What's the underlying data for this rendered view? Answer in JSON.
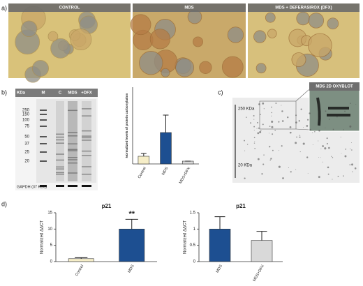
{
  "panel_labels": [
    "a)",
    "b)",
    "c)",
    "d)"
  ],
  "micrographs": [
    "CONTROL",
    "MDS",
    "MDS + DEFERASIROX  (DFX)"
  ],
  "blot": {
    "header": [
      "KDa",
      "M",
      "C",
      "MDS",
      "+DFX"
    ],
    "markers": [
      "250",
      "150",
      "100",
      "75",
      "50",
      "37",
      "25",
      "20"
    ],
    "loading": "GAPDH (37 KDa)"
  },
  "gel2d": {
    "inset_title": "MDS 2D OXYBLOT",
    "markers": [
      "250 KDa",
      "20 KDa"
    ]
  },
  "chart_data": [
    {
      "type": "bar",
      "y_label": "Normalized levels of protein carbonylation",
      "categories": [
        "Control",
        "MDS",
        "MDS+DFX"
      ],
      "values": [
        1.1,
        4.5,
        0.4
      ],
      "errors": [
        0.4,
        2.5,
        0
      ],
      "colors": [
        "#f6eec8",
        "#1d4f91",
        "#d9d9d9"
      ],
      "ylim": [
        0,
        11
      ]
    },
    {
      "type": "bar",
      "title": "p21",
      "y_label": "Normalized ΔΔCT",
      "categories": [
        "Control",
        "MDS"
      ],
      "values": [
        0.9,
        10
      ],
      "errors": [
        0.3,
        3
      ],
      "significance": [
        null,
        "**"
      ],
      "colors": [
        "#f6eec8",
        "#1d4f91"
      ],
      "ylim": [
        0,
        15
      ],
      "yticks": [
        0,
        5,
        10,
        15
      ]
    },
    {
      "type": "bar",
      "title": "p21",
      "y_label": "Normalized ΔΔCT",
      "categories": [
        "MDS",
        "MDS+DFX"
      ],
      "values": [
        1.0,
        0.65
      ],
      "errors": [
        0.38,
        0.28
      ],
      "colors": [
        "#1d4f91",
        "#d9d9d9"
      ],
      "ylim": [
        0,
        1.5
      ],
      "yticks": [
        0,
        0.5,
        1,
        1.5
      ]
    }
  ]
}
